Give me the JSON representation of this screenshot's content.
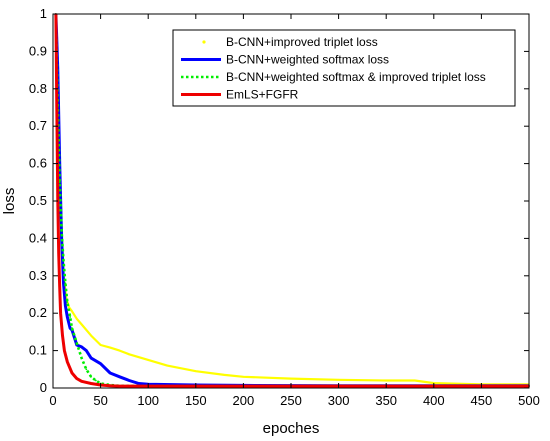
{
  "chart_data": {
    "type": "line",
    "title": "",
    "xlabel": "epoches",
    "ylabel": "loss",
    "xlim": [
      0,
      500
    ],
    "ylim": [
      0,
      1
    ],
    "xticks": [
      0,
      50,
      100,
      150,
      200,
      250,
      300,
      350,
      400,
      450,
      500
    ],
    "xtick_labels": [
      "0",
      "50",
      "100",
      "150",
      "200",
      "250",
      "300",
      "350",
      "400",
      "450",
      "500"
    ],
    "yticks": [
      0,
      0.1,
      0.2,
      0.3,
      0.4,
      0.5,
      0.6,
      0.7,
      0.8,
      0.9,
      1
    ],
    "ytick_labels": [
      "0",
      "0.1",
      "0.2",
      "0.3",
      "0.4",
      "0.5",
      "0.6",
      "0.7",
      "0.8",
      "0.9",
      "1"
    ],
    "grid": false,
    "legend_position": "top-right",
    "series": [
      {
        "name": "B-CNN+improved triplet loss",
        "color": "#ffff00",
        "style": "dotted-marker",
        "x": [
          3,
          5,
          7,
          9,
          11,
          14,
          17,
          20,
          25,
          30,
          40,
          50,
          60,
          70,
          80,
          100,
          120,
          150,
          180,
          200,
          250,
          300,
          350,
          380,
          400,
          450,
          500
        ],
        "y": [
          1.0,
          0.85,
          0.6,
          0.42,
          0.3,
          0.24,
          0.215,
          0.205,
          0.185,
          0.17,
          0.14,
          0.115,
          0.108,
          0.1,
          0.09,
          0.075,
          0.06,
          0.045,
          0.035,
          0.03,
          0.025,
          0.022,
          0.02,
          0.02,
          0.013,
          0.01,
          0.01
        ]
      },
      {
        "name": "B-CNN+weighted softmax loss",
        "color": "#0000ff",
        "style": "solid",
        "x": [
          3,
          5,
          7,
          9,
          11,
          13,
          15,
          18,
          20,
          25,
          30,
          35,
          40,
          50,
          60,
          70,
          80,
          90,
          100,
          150,
          200,
          300,
          400,
          500
        ],
        "y": [
          1.0,
          0.85,
          0.6,
          0.4,
          0.28,
          0.22,
          0.19,
          0.16,
          0.155,
          0.115,
          0.11,
          0.1,
          0.08,
          0.065,
          0.04,
          0.03,
          0.02,
          0.012,
          0.01,
          0.008,
          0.007,
          0.006,
          0.006,
          0.006
        ]
      },
      {
        "name": "B-CNN+weighted softmax & improved triplet loss",
        "color": "#00ee00",
        "style": "dotted",
        "x": [
          3,
          5,
          7,
          9,
          11,
          13,
          15,
          18,
          20,
          25,
          30,
          35,
          40,
          45,
          50,
          60,
          70,
          100,
          200,
          300,
          400,
          500
        ],
        "y": [
          1.0,
          0.75,
          0.55,
          0.42,
          0.34,
          0.28,
          0.23,
          0.19,
          0.16,
          0.12,
          0.08,
          0.05,
          0.03,
          0.02,
          0.012,
          0.008,
          0.006,
          0.005,
          0.005,
          0.005,
          0.005,
          0.005
        ]
      },
      {
        "name": "EmLS+FGFR",
        "color": "#ee0000",
        "style": "solid",
        "x": [
          3,
          4,
          5,
          6,
          7,
          8,
          10,
          12,
          15,
          20,
          25,
          30,
          40,
          50,
          60,
          70,
          100,
          200,
          300,
          400,
          500
        ],
        "y": [
          1.0,
          0.75,
          0.5,
          0.36,
          0.27,
          0.2,
          0.14,
          0.1,
          0.07,
          0.04,
          0.025,
          0.018,
          0.012,
          0.008,
          0.006,
          0.005,
          0.005,
          0.005,
          0.005,
          0.005,
          0.005
        ]
      }
    ]
  }
}
